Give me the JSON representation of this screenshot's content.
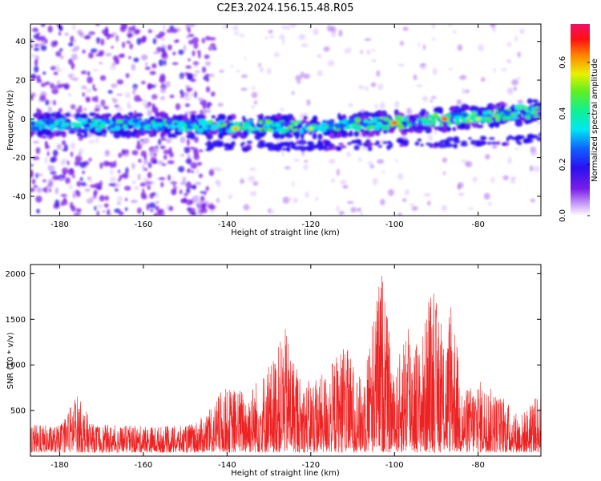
{
  "title": "C2E3.2024.156.15.48.R05",
  "colors": {
    "snr_line": "#ee2222",
    "axes": "#000000",
    "background": "#ffffff"
  },
  "chart_data": [
    {
      "type": "heatmap",
      "name": "spectrogram",
      "xlabel": "Height of straight line (km)",
      "ylabel": "Frequency (Hz)",
      "xlim": [
        -187,
        -65
      ],
      "ylim": [
        -50,
        49
      ],
      "xticks": [
        -180,
        -160,
        -140,
        -120,
        -100,
        -80
      ],
      "yticks": [
        -40,
        -20,
        0,
        20,
        40
      ],
      "colorbar": {
        "label": "Normalized spectral amplitude",
        "range": [
          0.0,
          0.75
        ],
        "ticks": [
          0.0,
          0.2,
          0.4,
          0.6
        ],
        "colormap": "rainbow (white-purple-blue-cyan-green-yellow-red-magenta)"
      },
      "band_centerline": [
        {
          "x": -187,
          "y": -3
        },
        {
          "x": -160,
          "y": -3
        },
        {
          "x": -140,
          "y": -4
        },
        {
          "x": -120,
          "y": -4
        },
        {
          "x": -100,
          "y": -2
        },
        {
          "x": -80,
          "y": 1
        },
        {
          "x": -66,
          "y": 4
        }
      ],
      "secondary_band": [
        {
          "x": -145,
          "y": -14
        },
        {
          "x": -120,
          "y": -14
        },
        {
          "x": -100,
          "y": -13
        },
        {
          "x": -80,
          "y": -12
        },
        {
          "x": -66,
          "y": -10
        }
      ],
      "peaks": [
        {
          "x": -138,
          "y": -5,
          "amp": 0.62
        },
        {
          "x": -120,
          "y": -5,
          "amp": 0.55
        },
        {
          "x": -100,
          "y": -2,
          "amp": 0.72
        },
        {
          "x": -88,
          "y": 0,
          "amp": 0.66
        },
        {
          "x": -80,
          "y": 0,
          "amp": 0.5
        },
        {
          "x": -70,
          "y": 6,
          "amp": 0.45
        }
      ],
      "noise_region": [
        -187,
        -143
      ]
    },
    {
      "type": "line",
      "name": "snr",
      "xlabel": "Height of straight line (km)",
      "ylabel": "SNR (10 * v/v)",
      "xlim": [
        -187,
        -65
      ],
      "ylim": [
        0,
        2100
      ],
      "xticks": [
        -180,
        -160,
        -140,
        -120,
        -100,
        -80
      ],
      "yticks": [
        500,
        1000,
        1500,
        2000
      ],
      "envelope": [
        {
          "x": -187,
          "y": 350
        },
        {
          "x": -180,
          "y": 330
        },
        {
          "x": -176,
          "y": 700
        },
        {
          "x": -172,
          "y": 350
        },
        {
          "x": -160,
          "y": 330
        },
        {
          "x": -150,
          "y": 330
        },
        {
          "x": -145,
          "y": 450
        },
        {
          "x": -141,
          "y": 750
        },
        {
          "x": -135,
          "y": 750
        },
        {
          "x": -130,
          "y": 1000
        },
        {
          "x": -126,
          "y": 1400
        },
        {
          "x": -122,
          "y": 800
        },
        {
          "x": -117,
          "y": 900
        },
        {
          "x": -112,
          "y": 1250
        },
        {
          "x": -108,
          "y": 850
        },
        {
          "x": -103,
          "y": 2100
        },
        {
          "x": -100,
          "y": 800
        },
        {
          "x": -97,
          "y": 1600
        },
        {
          "x": -94,
          "y": 1200
        },
        {
          "x": -91,
          "y": 1900
        },
        {
          "x": -88,
          "y": 1300
        },
        {
          "x": -86,
          "y": 1750
        },
        {
          "x": -84,
          "y": 700
        },
        {
          "x": -80,
          "y": 850
        },
        {
          "x": -74,
          "y": 650
        },
        {
          "x": -70,
          "y": 450
        },
        {
          "x": -65,
          "y": 700
        }
      ]
    }
  ]
}
